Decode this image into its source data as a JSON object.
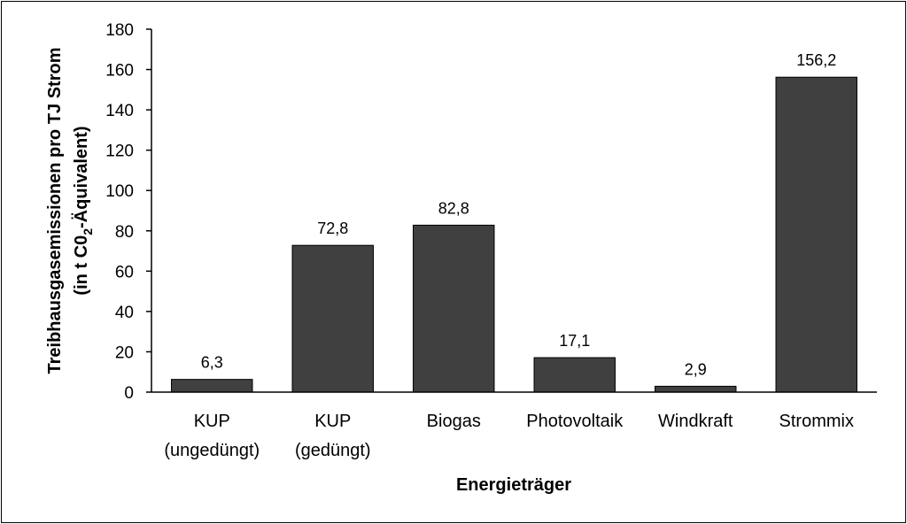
{
  "chart_data": {
    "type": "bar",
    "categories": [
      [
        "KUP",
        "(ungedüngt)"
      ],
      [
        "KUP",
        "(gedüngt)"
      ],
      [
        "Biogas"
      ],
      [
        "Photovoltaik"
      ],
      [
        "Windkraft"
      ],
      [
        "Strommix"
      ]
    ],
    "values": [
      6.3,
      72.8,
      82.8,
      17.1,
      2.9,
      156.2
    ],
    "data_labels": [
      "6,3",
      "72,8",
      "82,8",
      "17,1",
      "2,9",
      "156,2"
    ],
    "title": "",
    "xlabel": "Energieträger",
    "ylabel_line1": "Treibhausgasemissionen pro TJ Strom",
    "ylabel_line2_prefix": "(in t C0",
    "ylabel_line2_sub": "2",
    "ylabel_line2_suffix": "-Äquivalent)",
    "ylim": [
      0,
      180
    ],
    "yticks": [
      0,
      20,
      40,
      60,
      80,
      100,
      120,
      140,
      160,
      180
    ],
    "grid": false,
    "legend": "none",
    "bar_color": "#404040"
  }
}
